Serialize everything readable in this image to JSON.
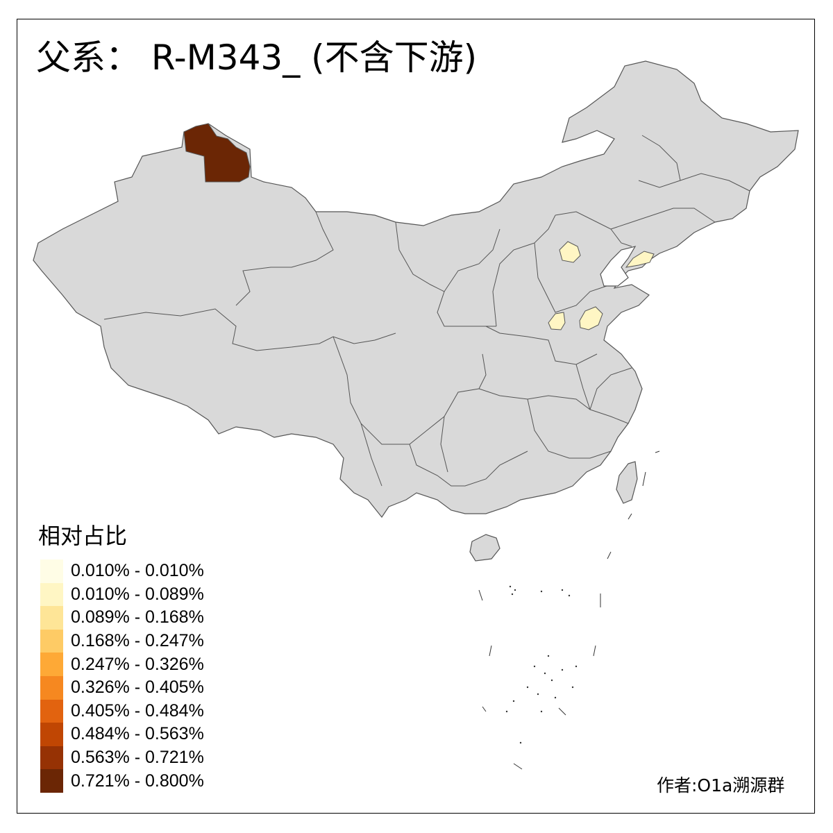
{
  "title": "父系： R-M343_ (不含下游)",
  "legend": {
    "title": "相对占比",
    "items": [
      {
        "label": "0.010% - 0.010%",
        "color": "#fffde6"
      },
      {
        "label": "0.010% - 0.089%",
        "color": "#fff6c4"
      },
      {
        "label": "0.089% - 0.168%",
        "color": "#fee597"
      },
      {
        "label": "0.168% - 0.247%",
        "color": "#fecb65"
      },
      {
        "label": "0.247% - 0.326%",
        "color": "#fea936"
      },
      {
        "label": "0.326% - 0.405%",
        "color": "#f68820"
      },
      {
        "label": "0.405% - 0.484%",
        "color": "#e2630f"
      },
      {
        "label": "0.484% - 0.563%",
        "color": "#c04603"
      },
      {
        "label": "0.563% - 0.721%",
        "color": "#963204"
      },
      {
        "label": "0.721% - 0.800%",
        "color": "#6b2605"
      }
    ]
  },
  "author": "作者:O1a溯源群",
  "colors": {
    "land": "#d9d9d9",
    "border": "#555555",
    "highlight_max": "#6b2605",
    "highlight_low": "#fff6c4"
  }
}
